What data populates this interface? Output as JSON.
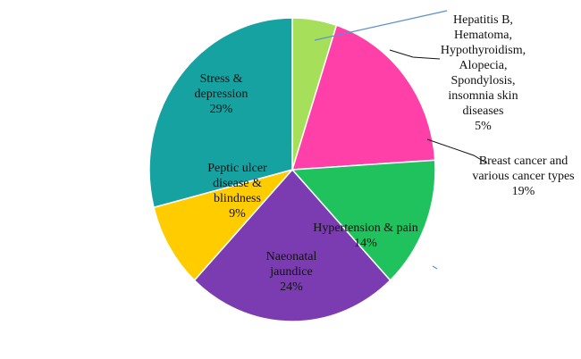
{
  "chart_data": {
    "type": "pie",
    "categories": [
      "Hepatitis B, Hematoma, Hypothyroidism, Alopecia, Spondylosis, insomnia skin diseases",
      "Breast cancer and various cancer types",
      "Hypertension & pain",
      "Naeonatal jaundice",
      "Peptic ulcer disease & blindness",
      "Stress & depression"
    ],
    "values": [
      5,
      19,
      14,
      24,
      9,
      29
    ],
    "value_labels": [
      "5%",
      "19%",
      "14%",
      "24%",
      "9%",
      "29%"
    ],
    "colors": [
      "#a6e05a",
      "#ff40a8",
      "#1fc25c",
      "#7a3cb0",
      "#ffcc00",
      "#17a2a2"
    ]
  }
}
